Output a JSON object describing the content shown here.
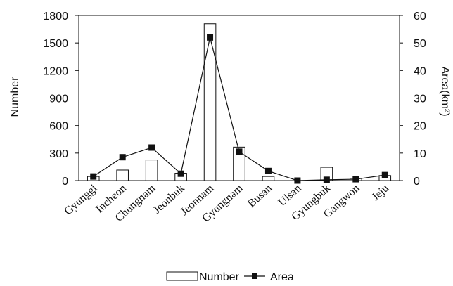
{
  "chart_data": {
    "type": "bar",
    "categories": [
      "Gyunggi",
      "Incheon",
      "Chungnam",
      "Jeonbuk",
      "Jeonnam",
      "Gyungnam",
      "Busan",
      "Ulsan",
      "Gyungbuk",
      "Gangwon",
      "Jeju"
    ],
    "series": [
      {
        "name": "Number",
        "type": "bar",
        "axis": "left",
        "values": [
          45,
          115,
          225,
          80,
          1710,
          365,
          45,
          0,
          145,
          25,
          55
        ]
      },
      {
        "name": "Area",
        "type": "line",
        "axis": "right",
        "values": [
          1.5,
          8.5,
          12,
          2.5,
          52,
          10.5,
          3.5,
          0,
          0.3,
          0.5,
          2
        ]
      }
    ],
    "ylabel": "Number",
    "y2label": "Area(km²)",
    "ylim": [
      0,
      1800
    ],
    "y2lim": [
      0,
      60
    ],
    "yticks": [
      "0",
      "300",
      "600",
      "900",
      "1200",
      "1500",
      "1800"
    ],
    "y2ticks": [
      "0",
      "10",
      "20",
      "30",
      "40",
      "50",
      "60"
    ],
    "legend": "bottom",
    "grid": false
  }
}
